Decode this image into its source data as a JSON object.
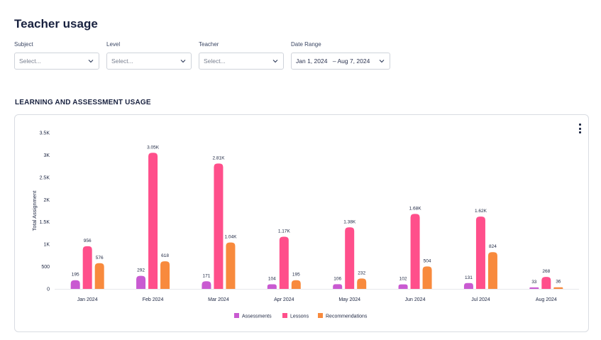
{
  "page": {
    "title": "Teacher usage"
  },
  "filters": {
    "subject": {
      "label": "Subject",
      "placeholder": "Select..."
    },
    "level": {
      "label": "Level",
      "placeholder": "Select..."
    },
    "teacher": {
      "label": "Teacher",
      "placeholder": "Select..."
    },
    "date_range": {
      "label": "Date Range",
      "start": "Jan 1, 2024",
      "separator": "–",
      "end": "Aug 7, 2024"
    }
  },
  "section": {
    "title": "LEARNING AND ASSESSMENT USAGE"
  },
  "chart_data": {
    "type": "bar",
    "ylabel": "Total Assignment",
    "xlabel": "",
    "ylim": [
      0,
      3500
    ],
    "yticks": [
      0,
      500,
      1000,
      1500,
      2000,
      2500,
      3000,
      3500
    ],
    "ytick_labels": [
      "0",
      "500",
      "1K",
      "1.5K",
      "2K",
      "2.5K",
      "3K",
      "3.5K"
    ],
    "categories": [
      "Jan 2024",
      "Feb 2024",
      "Mar 2024",
      "Apr 2024",
      "May 2024",
      "Jun 2024",
      "Jul 2024",
      "Aug 2024"
    ],
    "series": [
      {
        "name": "Assessments",
        "color": "#c95ad1",
        "values": [
          195,
          292,
          171,
          104,
          106,
          102,
          131,
          33
        ],
        "labels": [
          "195",
          "292",
          "171",
          "104",
          "106",
          "102",
          "131",
          "33"
        ]
      },
      {
        "name": "Lessons",
        "color": "#ff4f8b",
        "values": [
          956,
          3050,
          2810,
          1170,
          1380,
          1680,
          1620,
          268
        ],
        "labels": [
          "956",
          "3.05K",
          "2.81K",
          "1.17K",
          "1.38K",
          "1.68K",
          "1.62K",
          "268"
        ]
      },
      {
        "name": "Recommendations",
        "color": "#f88a3d",
        "values": [
          576,
          618,
          1040,
          195,
          232,
          504,
          824,
          36
        ],
        "labels": [
          "576",
          "618",
          "1.04K",
          "195",
          "232",
          "504",
          "824",
          "36"
        ]
      }
    ],
    "legend_position": "bottom",
    "grid": false
  }
}
